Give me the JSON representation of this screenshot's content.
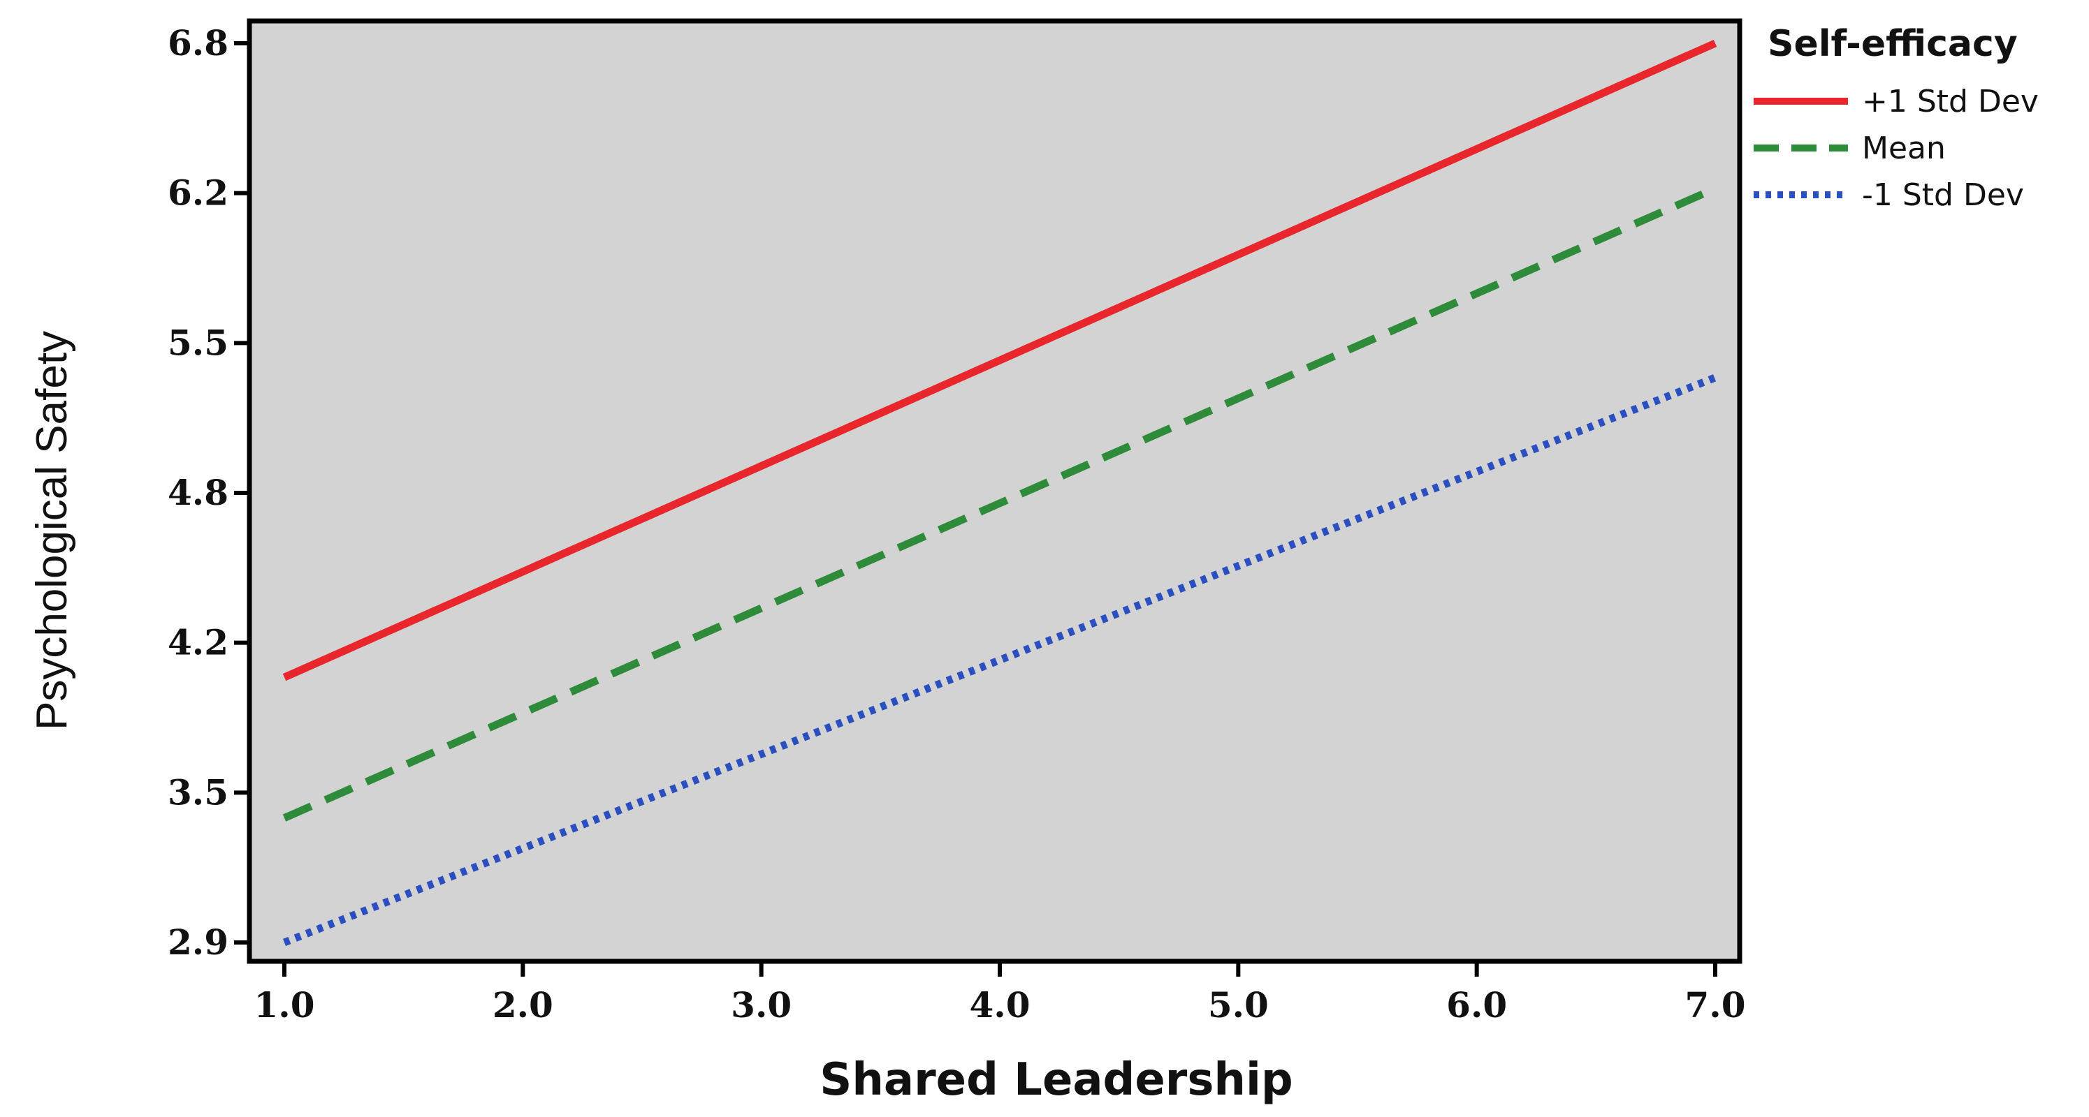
{
  "chart_data": {
    "type": "line",
    "title": "",
    "xlabel": "Shared Leadership",
    "ylabel": "Psychological Safety",
    "xlim": [
      1.0,
      7.0
    ],
    "ylim": [
      2.9,
      6.8
    ],
    "x_ticks": [
      "1.0",
      "2.0",
      "3.0",
      "4.0",
      "5.0",
      "6.0",
      "7.0"
    ],
    "y_ticks": [
      "6.8",
      "6.2",
      "5.5",
      "4.8",
      "4.2",
      "3.5",
      "2.9"
    ],
    "grid": false,
    "background_color": "#d3d3d3",
    "legend": {
      "title": "Self-efficacy",
      "placement": "top-right outside"
    },
    "series": [
      {
        "name": "+1 Std Dev",
        "x": [
          1.0,
          7.0
        ],
        "y": [
          4.05,
          6.8
        ],
        "color": "#e8262c",
        "style": "solid"
      },
      {
        "name": "Mean",
        "x": [
          1.0,
          7.0
        ],
        "y": [
          3.44,
          6.17
        ],
        "color": "#2e8b3a",
        "style": "dashed"
      },
      {
        "name": "-1 Std Dev",
        "x": [
          1.0,
          7.0
        ],
        "y": [
          2.9,
          5.35
        ],
        "color": "#2b4fbf",
        "style": "dotted"
      }
    ]
  }
}
